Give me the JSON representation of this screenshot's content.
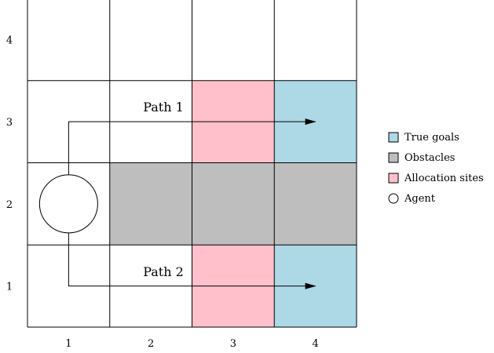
{
  "grid": {
    "columns": [
      "1",
      "2",
      "3",
      "4"
    ],
    "rows": [
      "1",
      "2",
      "3",
      "4"
    ],
    "cells": [
      {
        "col": 2,
        "row": 2,
        "kind": "obstacle"
      },
      {
        "col": 3,
        "row": 2,
        "kind": "obstacle"
      },
      {
        "col": 4,
        "row": 2,
        "kind": "obstacle"
      },
      {
        "col": 3,
        "row": 3,
        "kind": "allocation"
      },
      {
        "col": 3,
        "row": 1,
        "kind": "allocation"
      },
      {
        "col": 4,
        "row": 3,
        "kind": "goal"
      },
      {
        "col": 4,
        "row": 1,
        "kind": "goal"
      }
    ],
    "agent": {
      "col": 1,
      "row": 2
    }
  },
  "paths": [
    {
      "label": "Path 1",
      "from": {
        "col": 1,
        "row": 2
      },
      "to": {
        "col": 4,
        "row": 3
      }
    },
    {
      "label": "Path 2",
      "from": {
        "col": 1,
        "row": 2
      },
      "to": {
        "col": 4,
        "row": 1
      }
    }
  ],
  "legend": {
    "items": [
      {
        "label": "True goals",
        "kind": "goal",
        "color": "#add8e6"
      },
      {
        "label": "Obstacles",
        "kind": "obstacle",
        "color": "#bebebe"
      },
      {
        "label": "Allocation sites",
        "kind": "allocation",
        "color": "#ffc0cb"
      },
      {
        "label": "Agent",
        "kind": "agent",
        "color": "#ffffff"
      }
    ]
  }
}
